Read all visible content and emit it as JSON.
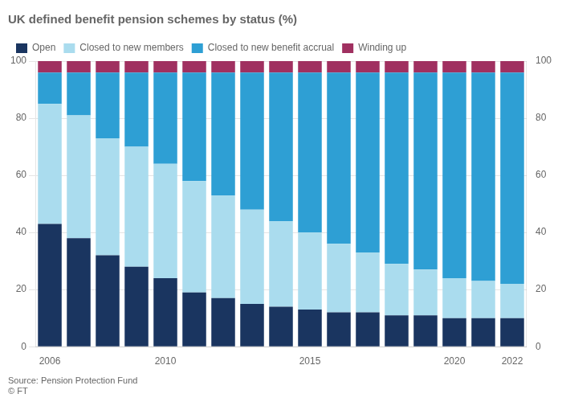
{
  "chart_data": {
    "type": "bar",
    "title": "UK defined benefit pension schemes by status (%)",
    "categories": [
      2006,
      null,
      null,
      null,
      2010,
      null,
      null,
      null,
      null,
      2015,
      null,
      null,
      null,
      null,
      2020,
      null,
      2022
    ],
    "series": [
      {
        "name": "Open",
        "color": "#1a3560",
        "values": [
          43,
          38,
          32,
          28,
          24,
          19,
          17,
          15,
          14,
          13,
          12,
          12,
          11,
          11,
          10,
          10,
          10
        ]
      },
      {
        "name": "Closed to new members",
        "color": "#aadcee",
        "values": [
          42,
          43,
          41,
          42,
          40,
          39,
          36,
          33,
          30,
          27,
          24,
          21,
          18,
          16,
          14,
          13,
          12
        ]
      },
      {
        "name": "Closed to new benefit accrual",
        "color": "#2e9fd4",
        "values": [
          11,
          15,
          23,
          26,
          32,
          38,
          43,
          48,
          52,
          56,
          60,
          63,
          67,
          69,
          72,
          73,
          74
        ]
      },
      {
        "name": "Winding up",
        "color": "#a03060",
        "values": [
          4,
          4,
          4,
          4,
          4,
          4,
          4,
          4,
          4,
          4,
          4,
          4,
          4,
          4,
          4,
          4,
          4
        ]
      }
    ],
    "stacked": true,
    "ylim": [
      0,
      100
    ],
    "yticks": [
      0,
      20,
      40,
      60,
      80,
      100
    ],
    "y2lim": [
      0,
      100
    ],
    "y2ticks": [
      0,
      20,
      40,
      60,
      80,
      100
    ],
    "grid": true,
    "legend": "upper left",
    "annotations": [
      "Source: Pension Protection Fund",
      "© FT"
    ]
  }
}
